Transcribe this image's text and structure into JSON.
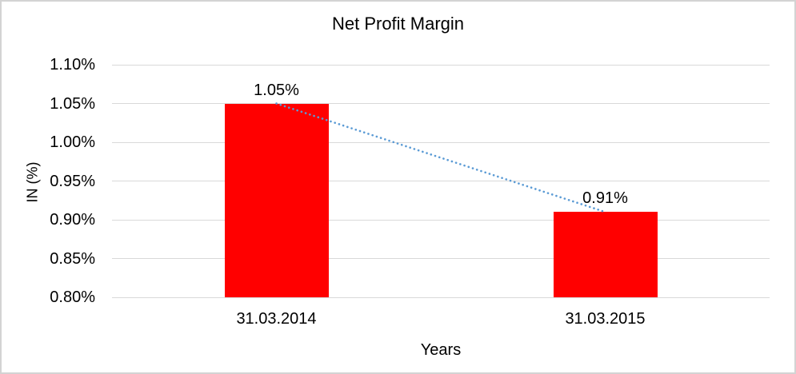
{
  "chart_data": {
    "type": "bar",
    "title": "Net Profit Margin",
    "categories": [
      "31.03.2014",
      "31.03.2015"
    ],
    "series": [
      {
        "name": "Net Profit Margin",
        "values": [
          1.05,
          0.91
        ]
      }
    ],
    "value_labels": [
      "1.05%",
      "0.91%"
    ],
    "xlabel": "Years",
    "ylabel": "IN (%)",
    "ylim": [
      0.8,
      1.1
    ],
    "ytick_step": 0.05,
    "yticks": [
      "1.10%",
      "1.05%",
      "1.00%",
      "0.95%",
      "0.90%",
      "0.85%",
      "0.80%"
    ],
    "grid": true,
    "legend": "none",
    "trendline": {
      "type": "linear",
      "style": "dotted"
    },
    "colors": {
      "bar": "#ff0000",
      "trendline": "#5b9bd5",
      "gridline": "#d9d9d9",
      "text": "#000000",
      "frame_border": "#d3d3d3",
      "background": "#ffffff"
    }
  }
}
